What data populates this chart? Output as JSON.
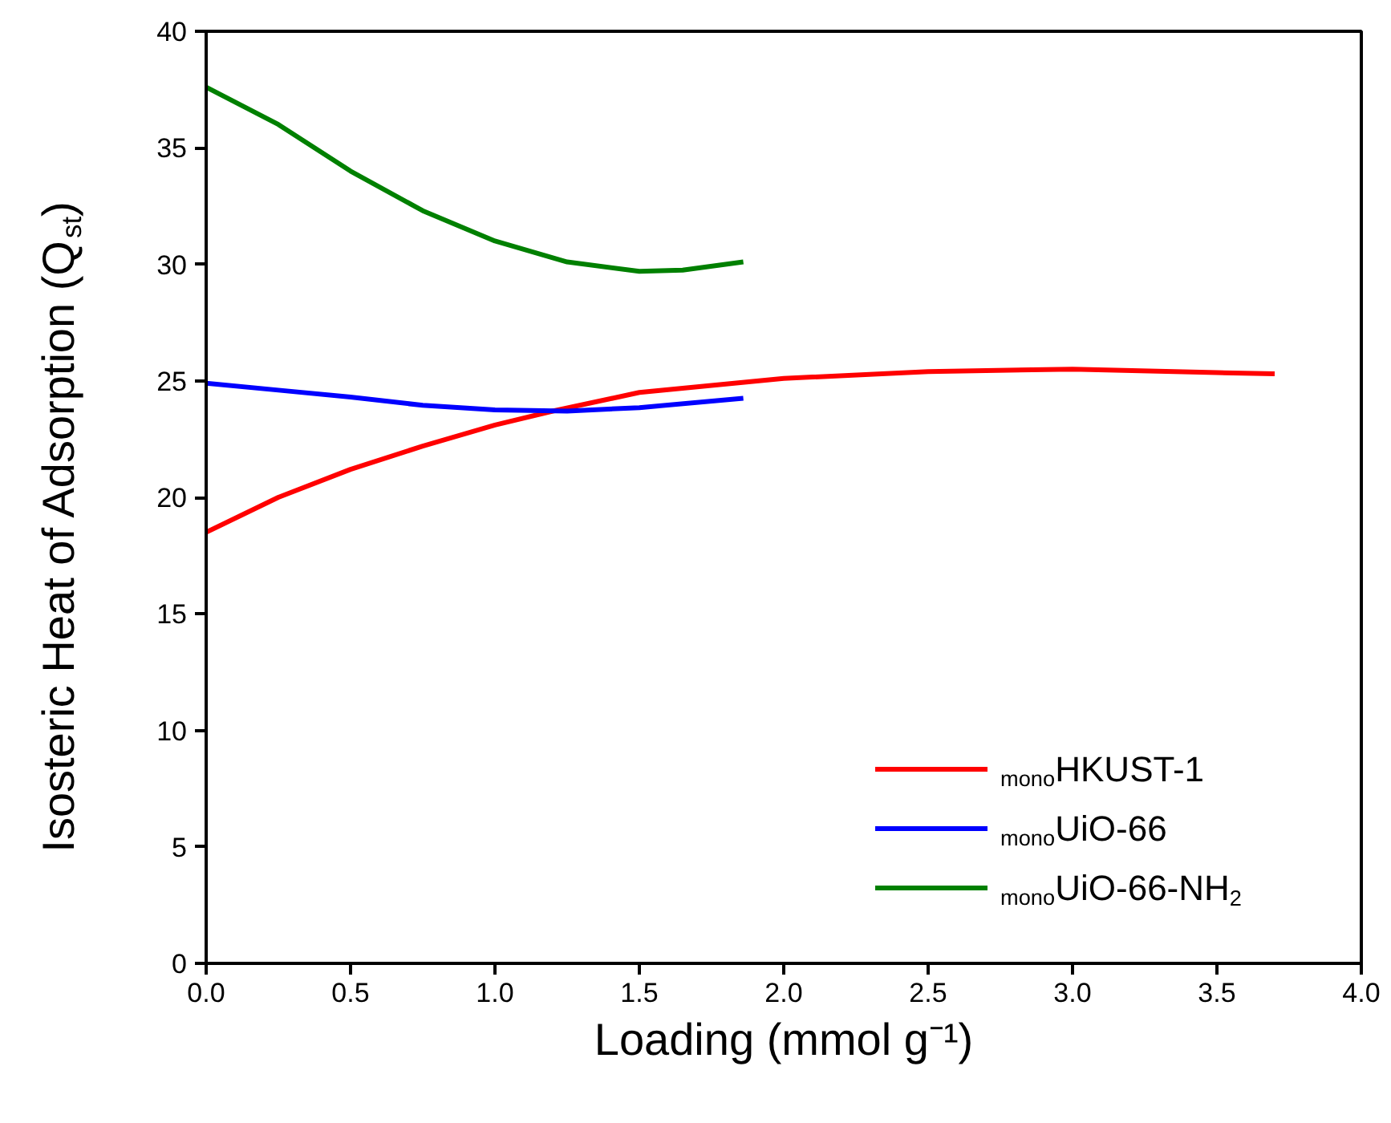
{
  "chart_data": {
    "type": "line",
    "xlabel": "Loading (mmol g⁻¹)",
    "ylabel": "Isosteric Heat of Adsorption (Q$_{st}$)",
    "xlim": [
      0,
      4
    ],
    "ylim": [
      0,
      40
    ],
    "xticks": [
      {
        "value": 0,
        "label": "0.0"
      },
      {
        "value": 0.5,
        "label": "0.5"
      },
      {
        "value": 1,
        "label": "1.0"
      },
      {
        "value": 1.5,
        "label": "1.5"
      },
      {
        "value": 2,
        "label": "2.0"
      },
      {
        "value": 2.5,
        "label": "2.5"
      },
      {
        "value": 3,
        "label": "3.0"
      },
      {
        "value": 3.5,
        "label": "3.5"
      },
      {
        "value": 4,
        "label": "4.0"
      }
    ],
    "yticks": [
      0,
      5,
      10,
      15,
      20,
      25,
      30,
      35,
      40
    ],
    "grid": false,
    "legend": "bottom right",
    "marker": "none",
    "line_style": "solid",
    "series": [
      {
        "name": "$_{mono}$HKUST-1",
        "color": "#ff0000",
        "x": [
          0,
          0.25,
          0.5,
          0.75,
          1.0,
          1.2,
          1.5,
          2.0,
          2.5,
          3.0,
          3.5,
          3.7
        ],
        "values": [
          18.5,
          20.0,
          21.2,
          22.2,
          23.1,
          23.7,
          24.5,
          25.1,
          25.4,
          25.5,
          25.35,
          25.3
        ]
      },
      {
        "name": "$_{mono}$UiO-66",
        "color": "#0000ff",
        "x": [
          0,
          0.25,
          0.5,
          0.75,
          1.0,
          1.25,
          1.5,
          1.86
        ],
        "values": [
          24.9,
          24.6,
          24.3,
          23.95,
          23.75,
          23.7,
          23.85,
          24.25
        ]
      },
      {
        "name": "$_{mono}$UiO-66-NH$_{2}$",
        "color": "#008000",
        "x": [
          0,
          0.25,
          0.5,
          0.75,
          1.0,
          1.25,
          1.5,
          1.65,
          1.86
        ],
        "values": [
          37.6,
          36.0,
          34.0,
          32.3,
          31.0,
          30.1,
          29.7,
          29.75,
          30.1
        ]
      }
    ]
  }
}
